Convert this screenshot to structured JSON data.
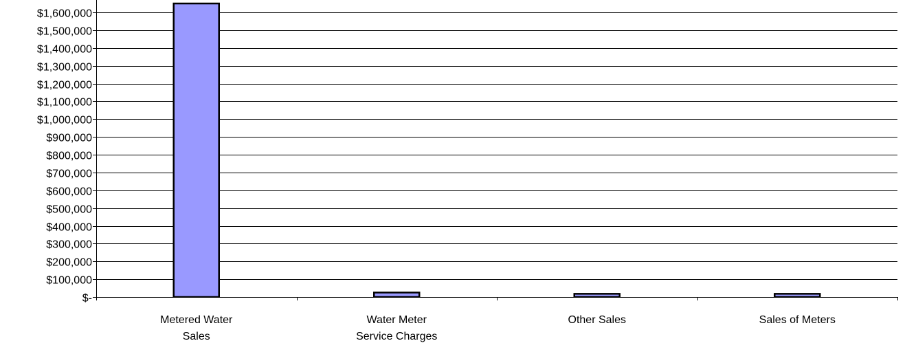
{
  "chart_data": {
    "type": "bar",
    "title": "",
    "xlabel": "",
    "ylabel": "",
    "ylim": [
      0,
      1600000
    ],
    "grid": true,
    "legend": "none",
    "categories": [
      [
        "Metered Water",
        "Sales"
      ],
      [
        "Water Meter",
        "Service Charges"
      ],
      [
        "Other Sales"
      ],
      [
        "Sales of Meters"
      ]
    ],
    "yticks": [
      {
        "value": 0,
        "label": "$-"
      },
      {
        "value": 100000,
        "label": "$100,000"
      },
      {
        "value": 200000,
        "label": "$200,000"
      },
      {
        "value": 300000,
        "label": "$300,000"
      },
      {
        "value": 400000,
        "label": "$400,000"
      },
      {
        "value": 500000,
        "label": "$500,000"
      },
      {
        "value": 600000,
        "label": "$600,000"
      },
      {
        "value": 700000,
        "label": "$700,000"
      },
      {
        "value": 800000,
        "label": "$800,000"
      },
      {
        "value": 900000,
        "label": "$900,000"
      },
      {
        "value": 1000000,
        "label": "$1,000,000"
      },
      {
        "value": 1100000,
        "label": "$1,100,000"
      },
      {
        "value": 1200000,
        "label": "$1,200,000"
      },
      {
        "value": 1300000,
        "label": "$1,300,000"
      },
      {
        "value": 1400000,
        "label": "$1,400,000"
      },
      {
        "value": 1500000,
        "label": "$1,500,000"
      },
      {
        "value": 1600000,
        "label": "$1,600,000"
      }
    ],
    "values": [
      1650000,
      25000,
      18000,
      18000
    ],
    "colors": {
      "bar_fill": "#9999FF",
      "bar_stroke": "#000000",
      "grid": "#000000",
      "axis": "#000000"
    }
  }
}
